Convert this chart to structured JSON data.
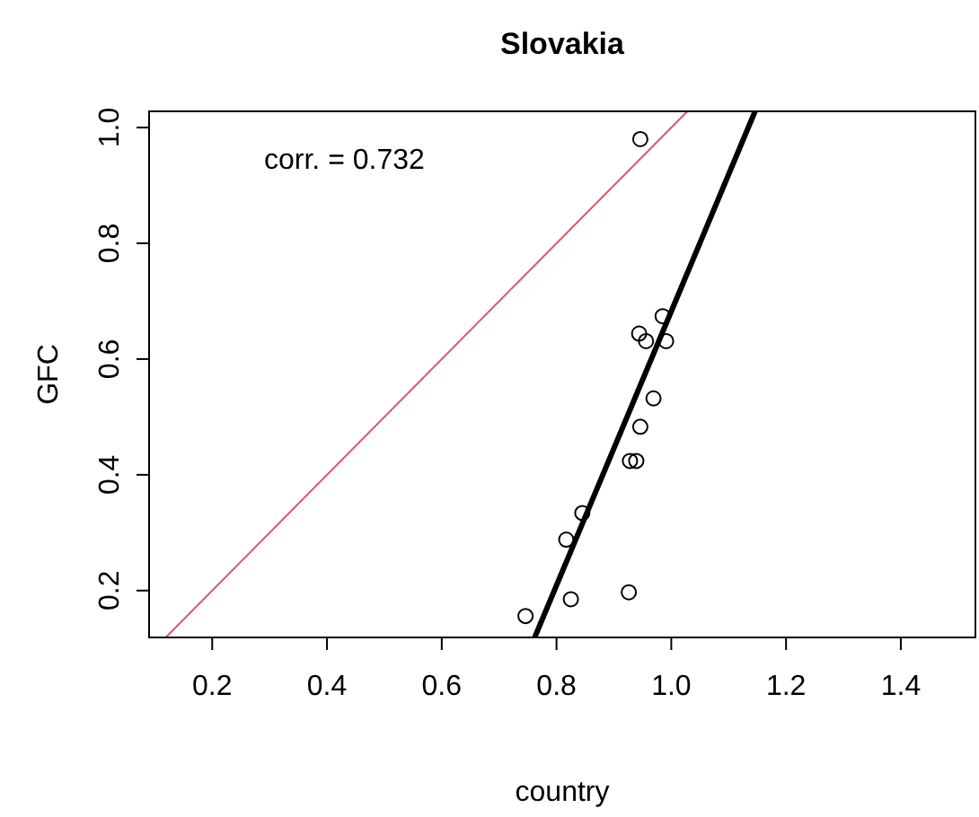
{
  "chart_data": {
    "type": "scatter",
    "title": "Slovakia",
    "xlabel": "country",
    "ylabel": "GFC",
    "annotations": [
      "corr. = 0.732"
    ],
    "xlim": [
      0.09,
      1.53
    ],
    "ylim": [
      0.119,
      1.028
    ],
    "xticks": [
      0.2,
      0.4,
      0.6,
      0.8,
      {
        "value": 1,
        "label": "1.0"
      },
      1.2,
      1.4
    ],
    "yticks": [
      0.2,
      0.4,
      0.6,
      0.8,
      {
        "value": 1,
        "label": "1.0"
      }
    ],
    "grid": false,
    "series": [
      {
        "marker": "circle",
        "color": "#000000",
        "x": [
          0.946,
          0.985,
          0.944,
          0.956,
          0.991,
          0.969,
          0.946,
          0.928,
          0.939,
          0.845,
          0.817,
          0.825,
          0.926,
          0.746
        ],
        "values": [
          0.98,
          0.674,
          0.644,
          0.631,
          0.631,
          0.532,
          0.483,
          0.424,
          0.424,
          0.334,
          0.288,
          0.185,
          0.197,
          0.156
        ]
      },
      {
        "type": "line",
        "color": "#000000",
        "x": [
          0.762,
          1.146
        ],
        "values": [
          0.119,
          1.028
        ]
      },
      {
        "type": "line",
        "color": "#df536b",
        "x": [
          0.119,
          1.028
        ],
        "values": [
          0.119,
          1.028
        ]
      }
    ]
  }
}
